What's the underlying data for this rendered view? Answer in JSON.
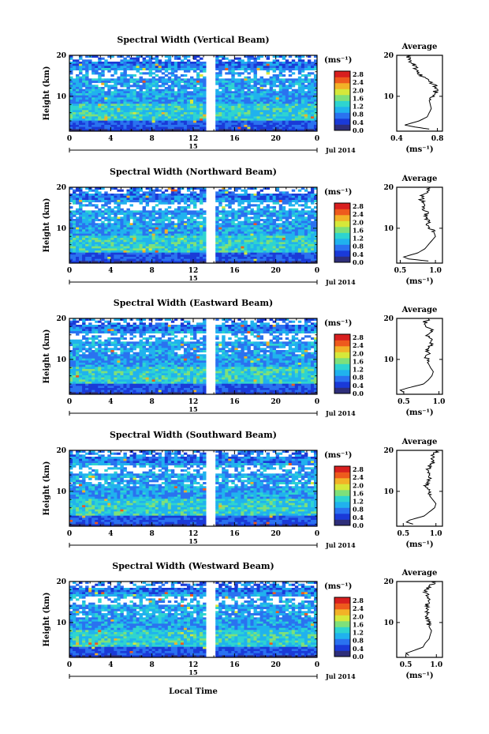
{
  "figure": {
    "xlabel": "Local Time",
    "ylabel": "Height (km)",
    "colorbar_unit": "(ms⁻¹)",
    "profile_title": "Average",
    "profile_xlabel": "(ms⁻¹)",
    "date_label": "Jul 2014",
    "day_label": "15"
  },
  "colors": {
    "scale": [
      "#2e2e7a",
      "#1a3ad8",
      "#2a72f0",
      "#20b2ee",
      "#2ed4d0",
      "#7ee07a",
      "#d6e83a",
      "#f2b227",
      "#ee5a1d",
      "#d81f1f"
    ]
  },
  "chart_data": [
    {
      "type": "heatmap",
      "title": "Spectral Width (Vertical Beam)",
      "x_ticks": [
        "0",
        "4",
        "8",
        "12",
        "16",
        "20",
        "0"
      ],
      "y_ticks": [
        "20",
        "10"
      ],
      "xlim": [
        0,
        24
      ],
      "ylim": [
        1.5,
        20
      ],
      "data_gap_hours": [
        13.3,
        14.2
      ],
      "colorbar_ticks": [
        "2.8",
        "2.4",
        "2.0",
        "1.6",
        "1.2",
        "0.8",
        "0.4",
        "0.0"
      ],
      "profile": {
        "x_ticks": [
          "0.4",
          "0.8"
        ],
        "xlim": [
          0.4,
          0.85
        ],
        "y_ticks": [
          "20",
          "10"
        ],
        "height_km": [
          2,
          2.5,
          3,
          4,
          5,
          6,
          7,
          8,
          9,
          10,
          11,
          12,
          13,
          14,
          15,
          16,
          17,
          18,
          19,
          20
        ],
        "width_ms": [
          0.72,
          0.58,
          0.48,
          0.62,
          0.7,
          0.72,
          0.74,
          0.73,
          0.72,
          0.75,
          0.78,
          0.8,
          0.76,
          0.7,
          0.65,
          0.6,
          0.58,
          0.55,
          0.52,
          0.5
        ]
      }
    },
    {
      "type": "heatmap",
      "title": "Spectral Width (Northward Beam)",
      "x_ticks": [
        "0",
        "4",
        "8",
        "12",
        "16",
        "20",
        "0"
      ],
      "y_ticks": [
        "20",
        "10"
      ],
      "xlim": [
        0,
        24
      ],
      "ylim": [
        1.5,
        20
      ],
      "data_gap_hours": [
        13.3,
        14.2
      ],
      "colorbar_ticks": [
        "2.8",
        "2.4",
        "2.0",
        "1.6",
        "1.2",
        "0.8",
        "0.4",
        "0.0"
      ],
      "profile": {
        "x_ticks": [
          "0.5",
          "1.0"
        ],
        "xlim": [
          0.45,
          1.1
        ],
        "y_ticks": [
          "20",
          "10"
        ],
        "height_km": [
          2,
          2.5,
          3,
          4,
          5,
          6,
          7,
          8,
          9,
          10,
          11,
          12,
          13,
          14,
          15,
          16,
          17,
          18,
          19,
          20
        ],
        "width_ms": [
          0.9,
          0.62,
          0.55,
          0.75,
          0.85,
          0.9,
          0.95,
          1.0,
          0.98,
          0.92,
          0.9,
          0.88,
          0.87,
          0.86,
          0.84,
          0.85,
          0.8,
          0.82,
          0.88,
          0.9
        ]
      }
    },
    {
      "type": "heatmap",
      "title": "Spectral Width (Eastward Beam)",
      "x_ticks": [
        "0",
        "4",
        "8",
        "12",
        "16",
        "20",
        "0"
      ],
      "y_ticks": [
        "20",
        "10"
      ],
      "xlim": [
        0,
        24
      ],
      "ylim": [
        1.5,
        20
      ],
      "data_gap_hours": [
        13.3,
        14.2
      ],
      "colorbar_ticks": [
        "2.8",
        "2.4",
        "2.0",
        "1.6",
        "1.2",
        "0.8",
        "0.4",
        "0.0"
      ],
      "profile": {
        "x_ticks": [
          "0.5",
          "1.0"
        ],
        "xlim": [
          0.4,
          1.05
        ],
        "y_ticks": [
          "20",
          "10"
        ],
        "height_km": [
          2,
          2.5,
          3,
          4,
          5,
          6,
          7,
          8,
          9,
          10,
          11,
          12,
          13,
          14,
          15,
          16,
          17,
          18,
          19,
          20
        ],
        "width_ms": [
          0.5,
          0.45,
          0.55,
          0.78,
          0.85,
          0.9,
          0.92,
          0.88,
          0.85,
          0.82,
          0.85,
          0.83,
          0.88,
          0.9,
          0.86,
          0.85,
          0.9,
          0.85,
          0.8,
          0.85
        ]
      }
    },
    {
      "type": "heatmap",
      "title": "Spectral Width (Southward Beam)",
      "x_ticks": [
        "0",
        "4",
        "8",
        "12",
        "16",
        "20",
        "0"
      ],
      "y_ticks": [
        "20",
        "10"
      ],
      "xlim": [
        0,
        24
      ],
      "ylim": [
        1.5,
        20
      ],
      "data_gap_hours": [
        13.3,
        14.2
      ],
      "colorbar_ticks": [
        "2.8",
        "2.4",
        "2.0",
        "1.6",
        "1.2",
        "0.8",
        "0.4",
        "0.0"
      ],
      "profile": {
        "x_ticks": [
          "0.5",
          "1.0"
        ],
        "xlim": [
          0.4,
          1.1
        ],
        "y_ticks": [
          "20",
          "10"
        ],
        "height_km": [
          2,
          2.5,
          3,
          4,
          5,
          6,
          7,
          8,
          9,
          10,
          11,
          12,
          13,
          14,
          15,
          16,
          17,
          18,
          19,
          20
        ],
        "width_ms": [
          0.65,
          0.55,
          0.6,
          0.82,
          0.9,
          0.98,
          1.0,
          0.95,
          0.9,
          0.88,
          0.85,
          0.86,
          0.9,
          0.92,
          0.88,
          0.9,
          0.95,
          0.92,
          0.98,
          1.02
        ]
      }
    },
    {
      "type": "heatmap",
      "title": "Spectral Width (Westward Beam)",
      "x_ticks": [
        "0",
        "4",
        "8",
        "12",
        "16",
        "20",
        "0"
      ],
      "y_ticks": [
        "20",
        "10"
      ],
      "xlim": [
        0,
        24
      ],
      "ylim": [
        1.5,
        20
      ],
      "data_gap_hours": [
        13.3,
        14.2
      ],
      "colorbar_ticks": [
        "2.8",
        "2.4",
        "2.0",
        "1.6",
        "1.2",
        "0.8",
        "0.4",
        "0.0"
      ],
      "profile": {
        "x_ticks": [
          "0.5",
          "1.0"
        ],
        "xlim": [
          0.35,
          1.1
        ],
        "y_ticks": [
          "20",
          "10"
        ],
        "height_km": [
          2,
          2.5,
          3,
          4,
          5,
          6,
          7,
          8,
          9,
          10,
          11,
          12,
          13,
          14,
          15,
          16,
          17,
          18,
          19,
          20
        ],
        "width_ms": [
          0.55,
          0.5,
          0.6,
          0.78,
          0.82,
          0.88,
          0.9,
          0.92,
          0.88,
          0.86,
          0.85,
          0.88,
          0.85,
          0.84,
          0.86,
          0.88,
          0.82,
          0.85,
          0.9,
          1.0
        ]
      }
    }
  ]
}
